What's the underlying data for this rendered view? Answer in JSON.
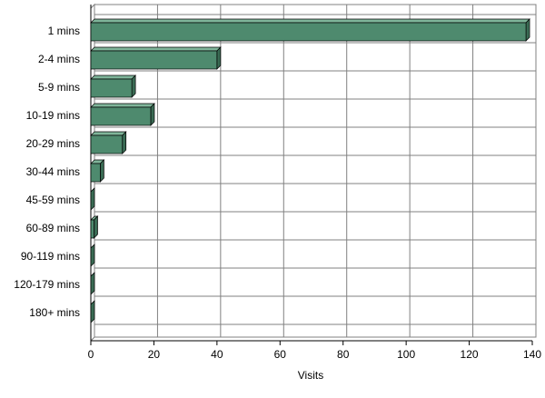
{
  "chart_data": {
    "type": "bar",
    "orientation": "horizontal",
    "x_label": "Visits",
    "categories": [
      "1 mins",
      "2-4 mins",
      "5-9 mins",
      "10-19 mins",
      "20-29 mins",
      "30-44 mins",
      "45-59 mins",
      "60-89 mins",
      "90-119 mins",
      "120-179 mins",
      "180+ mins"
    ],
    "values": [
      138,
      40,
      13,
      19,
      10,
      3,
      0,
      1,
      0,
      0,
      0
    ],
    "color": "#4e8a6e",
    "xlim": [
      0,
      140
    ],
    "xticks": [
      0,
      20,
      40,
      60,
      80,
      100,
      120,
      140
    ],
    "grid": true
  }
}
